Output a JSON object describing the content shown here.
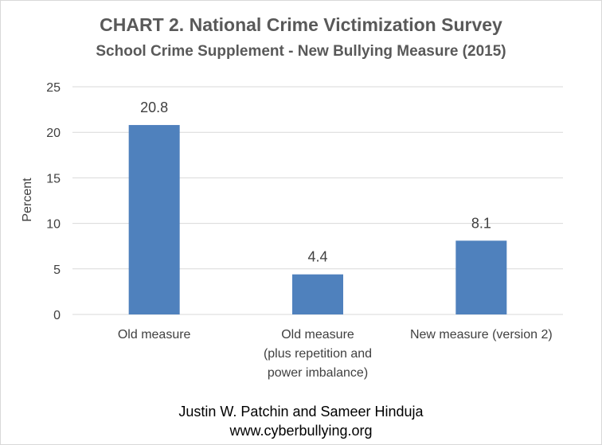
{
  "chart_data": {
    "type": "bar",
    "title": "CHART 2. National Crime Victimization Survey",
    "subtitle": "School Crime Supplement - New Bullying Measure (2015)",
    "xlabel": "",
    "ylabel": "Percent",
    "ylim": [
      0,
      25
    ],
    "yticks": [
      0,
      5,
      10,
      15,
      20,
      25
    ],
    "grid": true,
    "categories": [
      [
        "Old measure"
      ],
      [
        "Old measure",
        "(plus repetition and",
        "power imbalance)"
      ],
      [
        "New measure (version 2)"
      ]
    ],
    "values": [
      20.8,
      4.4,
      8.1
    ],
    "data_labels": [
      "20.8",
      "4.4",
      "8.1"
    ],
    "bar_color": "#4f81bd",
    "grid_color": "#d9d9d9"
  },
  "credits": {
    "line1": "Justin W. Patchin and Sameer Hinduja",
    "line2": "www.cyberbullying.org"
  }
}
